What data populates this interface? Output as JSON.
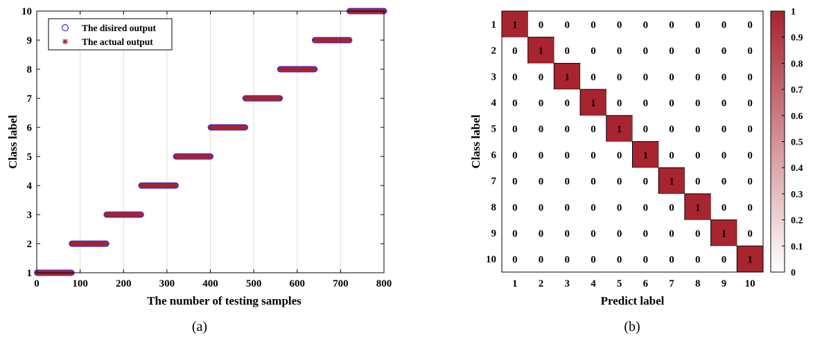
{
  "chart_data": [
    {
      "type": "scatter",
      "panel_label": "(a)",
      "xlabel": "The number of testing samples",
      "ylabel": "Class label",
      "xlim": [
        0,
        800
      ],
      "ylim": [
        1,
        10
      ],
      "xticks": [
        0,
        100,
        200,
        300,
        400,
        500,
        600,
        700,
        800
      ],
      "yticks": [
        1,
        2,
        3,
        4,
        5,
        6,
        7,
        8,
        9,
        10
      ],
      "grid": "vertical",
      "legend_position": "top-left",
      "points_per_class": 80,
      "series": [
        {
          "name": "The disired output",
          "marker": "circle",
          "color": "#2a2ae8",
          "segments": [
            {
              "class": 1,
              "x_start": 1,
              "x_end": 80
            },
            {
              "class": 2,
              "x_start": 81,
              "x_end": 160
            },
            {
              "class": 3,
              "x_start": 161,
              "x_end": 240
            },
            {
              "class": 4,
              "x_start": 241,
              "x_end": 320
            },
            {
              "class": 5,
              "x_start": 321,
              "x_end": 400
            },
            {
              "class": 6,
              "x_start": 401,
              "x_end": 480
            },
            {
              "class": 7,
              "x_start": 481,
              "x_end": 560
            },
            {
              "class": 8,
              "x_start": 561,
              "x_end": 640
            },
            {
              "class": 9,
              "x_start": 641,
              "x_end": 720
            },
            {
              "class": 10,
              "x_start": 721,
              "x_end": 800
            }
          ]
        },
        {
          "name": "The actual output",
          "marker": "asterisk",
          "color": "#a8242e",
          "segments": [
            {
              "class": 1,
              "x_start": 1,
              "x_end": 80
            },
            {
              "class": 2,
              "x_start": 81,
              "x_end": 160
            },
            {
              "class": 3,
              "x_start": 161,
              "x_end": 240
            },
            {
              "class": 4,
              "x_start": 241,
              "x_end": 320
            },
            {
              "class": 5,
              "x_start": 321,
              "x_end": 400
            },
            {
              "class": 6,
              "x_start": 401,
              "x_end": 480
            },
            {
              "class": 7,
              "x_start": 481,
              "x_end": 560
            },
            {
              "class": 8,
              "x_start": 561,
              "x_end": 640
            },
            {
              "class": 9,
              "x_start": 641,
              "x_end": 720
            },
            {
              "class": 10,
              "x_start": 721,
              "x_end": 800
            }
          ]
        }
      ]
    },
    {
      "type": "heatmap",
      "panel_label": "(b)",
      "xlabel": "Predict label",
      "ylabel": "Class label",
      "x_categories": [
        "1",
        "2",
        "3",
        "4",
        "5",
        "6",
        "7",
        "8",
        "9",
        "10"
      ],
      "y_categories": [
        "1",
        "2",
        "3",
        "4",
        "5",
        "6",
        "7",
        "8",
        "9",
        "10"
      ],
      "matrix": [
        [
          1,
          0,
          0,
          0,
          0,
          0,
          0,
          0,
          0,
          0
        ],
        [
          0,
          1,
          0,
          0,
          0,
          0,
          0,
          0,
          0,
          0
        ],
        [
          0,
          0,
          1,
          0,
          0,
          0,
          0,
          0,
          0,
          0
        ],
        [
          0,
          0,
          0,
          1,
          0,
          0,
          0,
          0,
          0,
          0
        ],
        [
          0,
          0,
          0,
          0,
          1,
          0,
          0,
          0,
          0,
          0
        ],
        [
          0,
          0,
          0,
          0,
          0,
          1,
          0,
          0,
          0,
          0
        ],
        [
          0,
          0,
          0,
          0,
          0,
          0,
          1,
          0,
          0,
          0
        ],
        [
          0,
          0,
          0,
          0,
          0,
          0,
          0,
          1,
          0,
          0
        ],
        [
          0,
          0,
          0,
          0,
          0,
          0,
          0,
          0,
          1,
          0
        ],
        [
          0,
          0,
          0,
          0,
          0,
          0,
          0,
          0,
          0,
          1
        ]
      ],
      "colorbar": {
        "range": [
          0,
          1
        ],
        "ticks": [
          "0",
          "0.1",
          "0.2",
          "0.3",
          "0.4",
          "0.5",
          "0.6",
          "0.7",
          "0.8",
          "0.9",
          "1"
        ],
        "color_low": "#ffffff",
        "color_high": "#a8242e"
      }
    }
  ]
}
